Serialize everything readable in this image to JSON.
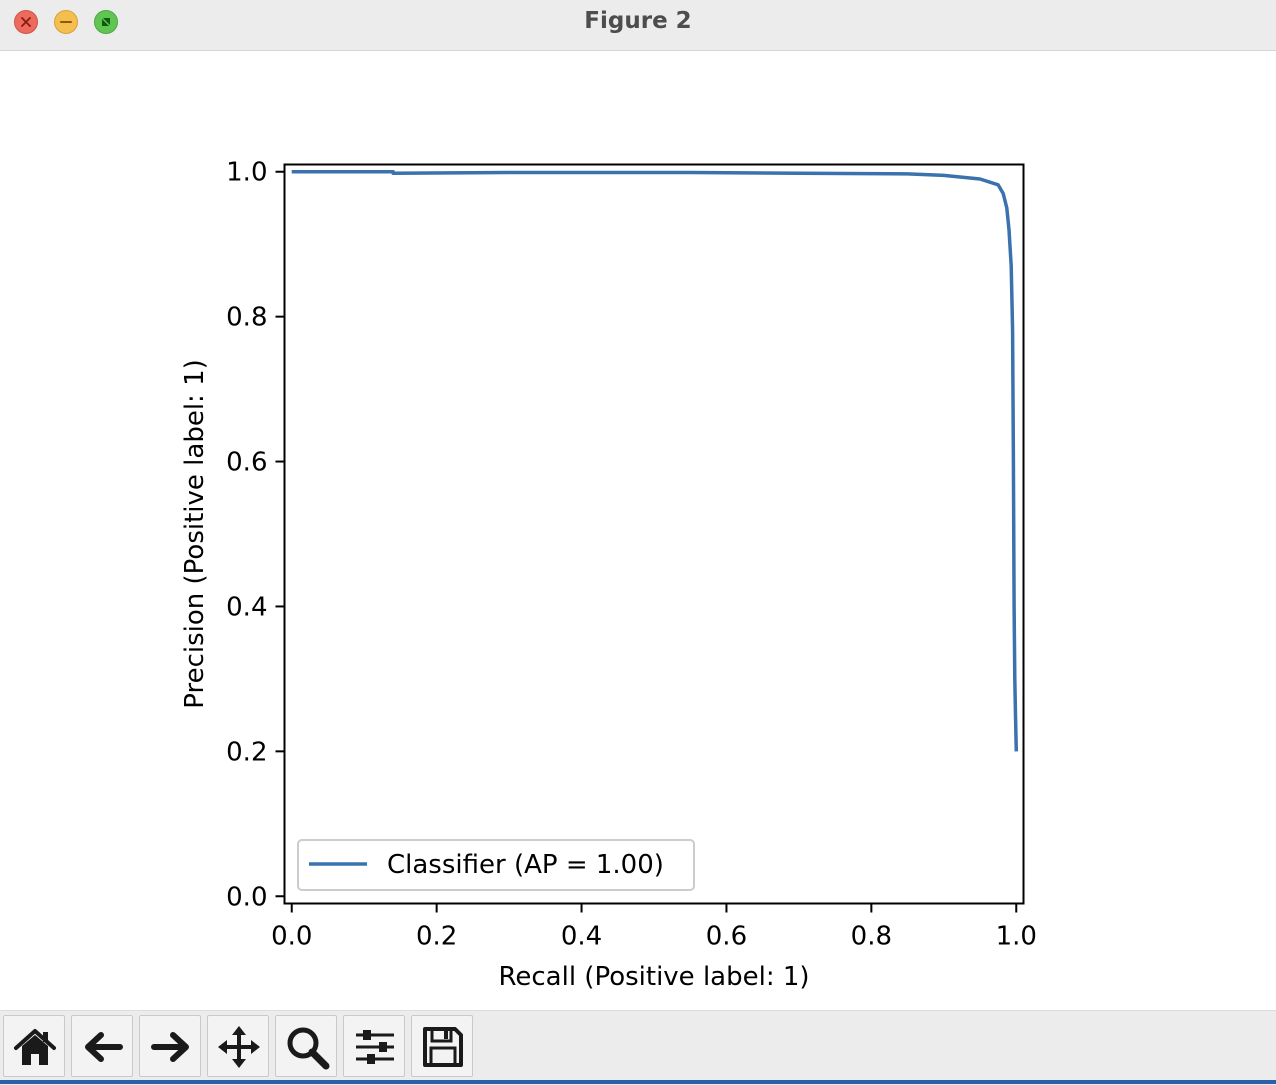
{
  "window": {
    "title": "Figure 2"
  },
  "toolbar": {
    "buttons": [
      {
        "name": "home-icon"
      },
      {
        "name": "back-arrow-icon"
      },
      {
        "name": "forward-arrow-icon"
      },
      {
        "name": "pan-icon"
      },
      {
        "name": "zoom-icon"
      },
      {
        "name": "subplots-configure-icon"
      },
      {
        "name": "save-icon"
      }
    ]
  },
  "chart_data": {
    "type": "line",
    "title": "",
    "xlabel": "Recall (Positive label: 1)",
    "ylabel": "Precision (Positive label: 1)",
    "xlim": [
      -0.01,
      1.01
    ],
    "ylim": [
      -0.01,
      1.01
    ],
    "xticks": [
      "0.0",
      "0.2",
      "0.4",
      "0.6",
      "0.8",
      "1.0"
    ],
    "yticks": [
      "0.0",
      "0.2",
      "0.4",
      "0.6",
      "0.8",
      "1.0"
    ],
    "legend": {
      "placement": "lower-left",
      "entries": [
        "Classifier (AP = 1.00)"
      ]
    },
    "series": [
      {
        "name": "Classifier (AP = 1.00)",
        "color": "#3a72ad",
        "x": [
          0.0,
          0.14,
          0.14,
          0.3,
          0.55,
          0.7,
          0.85,
          0.9,
          0.95,
          0.975,
          0.982,
          0.987,
          0.99,
          0.993,
          0.995,
          0.996,
          0.997,
          0.998,
          0.999,
          1.0
        ],
        "y": [
          1.0,
          1.0,
          0.998,
          0.999,
          0.999,
          0.998,
          0.997,
          0.995,
          0.99,
          0.982,
          0.97,
          0.95,
          0.92,
          0.87,
          0.78,
          0.6,
          0.4,
          0.3,
          0.25,
          0.2
        ]
      }
    ]
  }
}
